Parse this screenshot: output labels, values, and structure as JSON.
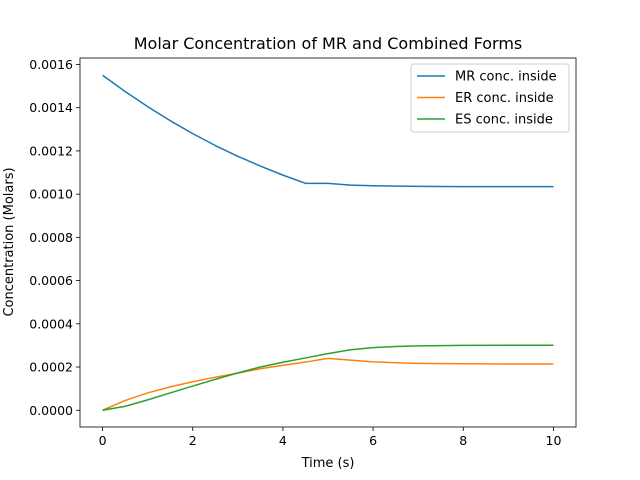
{
  "chart_data": {
    "type": "line",
    "title": "Molar Concentration of MR and Combined Forms",
    "xlabel": "Time (s)",
    "ylabel": "Concentration (Molars)",
    "xlim": [
      -0.5,
      10.5
    ],
    "ylim": [
      -7.75e-05,
      0.00163
    ],
    "xticks": [
      0,
      2,
      4,
      6,
      8,
      10
    ],
    "xtick_labels": [
      "0",
      "2",
      "4",
      "6",
      "8",
      "10"
    ],
    "yticks": [
      0,
      0.0002,
      0.0004,
      0.0006,
      0.0008,
      0.001,
      0.0012,
      0.0014,
      0.0016
    ],
    "ytick_labels": [
      "0.0000",
      "0.0002",
      "0.0004",
      "0.0006",
      "0.0008",
      "0.0010",
      "0.0012",
      "0.0014",
      "0.0016"
    ],
    "grid": false,
    "legend_position": "top-right",
    "series": [
      {
        "name": "MR conc. inside",
        "color": "#1f77b4",
        "x": [
          0,
          0.5,
          1,
          1.5,
          2,
          2.5,
          3,
          3.5,
          4,
          4.5,
          5,
          5.5,
          6,
          7,
          8,
          9,
          10
        ],
        "y": [
          0.00155,
          0.001475,
          0.001405,
          0.00134,
          0.00128,
          0.001225,
          0.001175,
          0.00113,
          0.001088,
          0.00105,
          0.00105,
          0.001042,
          0.001039,
          0.001036,
          0.001035,
          0.001035,
          0.001035
        ]
      },
      {
        "name": "ER conc. inside",
        "color": "#ff7f0e",
        "x": [
          0,
          0.5,
          1,
          1.5,
          2,
          2.5,
          3,
          3.5,
          4,
          4.5,
          5,
          5.5,
          6,
          6.5,
          7,
          8,
          9,
          10
        ],
        "y": [
          0,
          4.5e-05,
          8e-05,
          0.000108,
          0.000132,
          0.000153,
          0.000172,
          0.000192,
          0.000208,
          0.000223,
          0.00024,
          0.000232,
          0.000224,
          0.00022,
          0.000217,
          0.000215,
          0.000214,
          0.000214
        ]
      },
      {
        "name": "ES conc. inside",
        "color": "#2ca02c",
        "x": [
          0,
          0.5,
          1,
          1.5,
          2,
          2.5,
          3,
          3.5,
          4,
          4.5,
          5,
          5.5,
          6,
          6.5,
          7,
          8,
          9,
          10
        ],
        "y": [
          0,
          1.8e-05,
          4.8e-05,
          8e-05,
          0.000112,
          0.000143,
          0.000173,
          0.0002,
          0.000222,
          0.000242,
          0.000262,
          0.00028,
          0.00029,
          0.000295,
          0.000298,
          0.0003,
          0.000301,
          0.000301
        ]
      }
    ]
  }
}
